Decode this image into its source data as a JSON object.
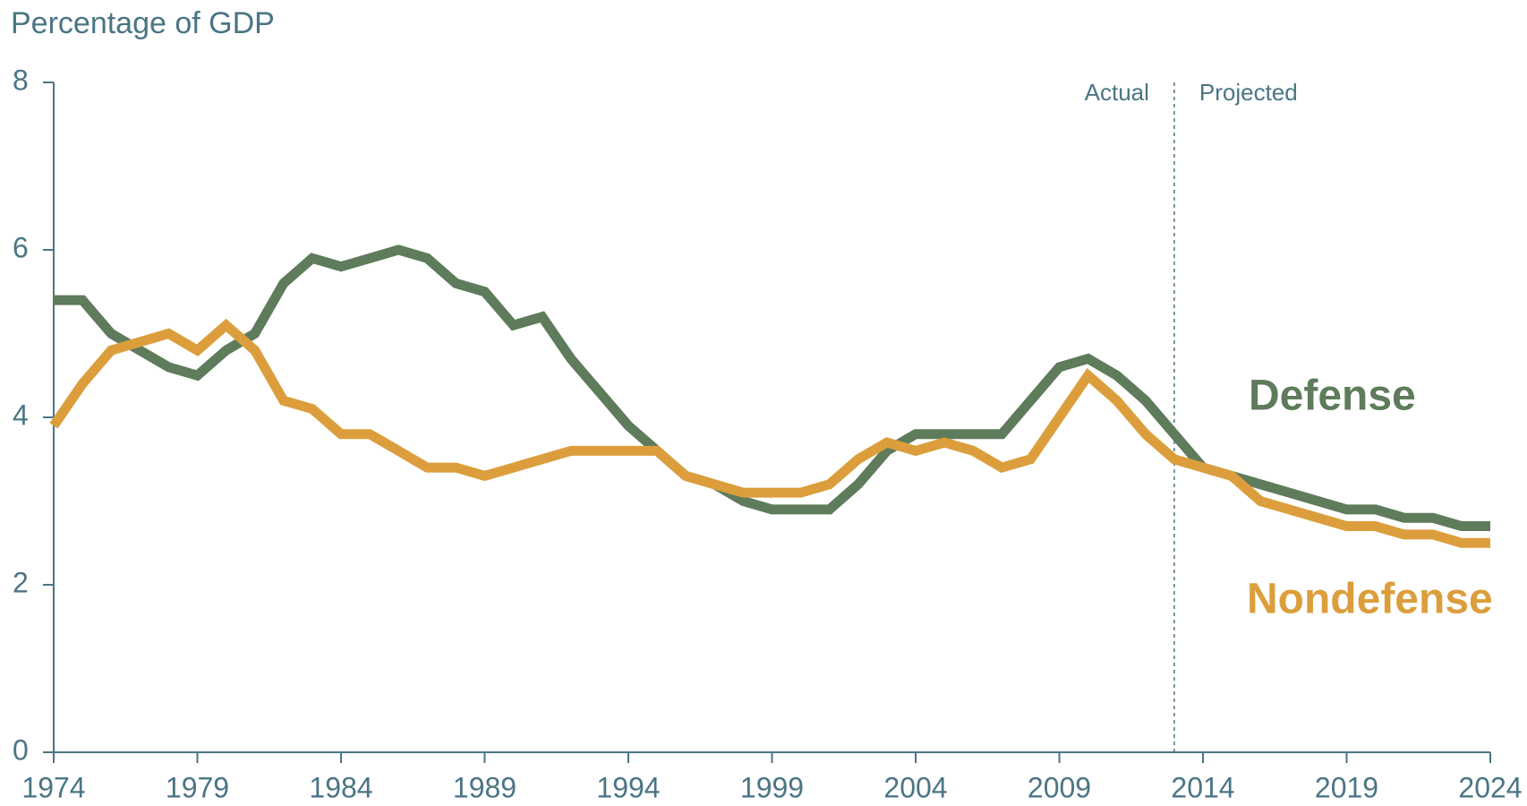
{
  "chart_data": {
    "type": "line",
    "y_axis_label": "Percentage of GDP",
    "x": [
      1974,
      1975,
      1976,
      1977,
      1978,
      1979,
      1980,
      1981,
      1982,
      1983,
      1984,
      1985,
      1986,
      1987,
      1988,
      1989,
      1990,
      1991,
      1992,
      1993,
      1994,
      1995,
      1996,
      1997,
      1998,
      1999,
      2000,
      2001,
      2002,
      2003,
      2004,
      2005,
      2006,
      2007,
      2008,
      2009,
      2010,
      2011,
      2012,
      2013,
      2014,
      2015,
      2016,
      2017,
      2018,
      2019,
      2020,
      2021,
      2022,
      2023,
      2024
    ],
    "series": [
      {
        "name": "Defense",
        "color": "#5e7b5b",
        "values": [
          5.4,
          5.4,
          5.0,
          4.8,
          4.6,
          4.5,
          4.8,
          5.0,
          5.6,
          5.9,
          5.8,
          5.9,
          6.0,
          5.9,
          5.6,
          5.5,
          5.1,
          5.2,
          4.7,
          4.3,
          3.9,
          3.6,
          3.3,
          3.2,
          3.0,
          2.9,
          2.9,
          2.9,
          3.2,
          3.6,
          3.8,
          3.8,
          3.8,
          3.8,
          4.2,
          4.6,
          4.7,
          4.5,
          4.2,
          3.8,
          3.4,
          3.3,
          3.2,
          3.1,
          3.0,
          2.9,
          2.9,
          2.8,
          2.8,
          2.7,
          2.7
        ]
      },
      {
        "name": "Nondefense",
        "color": "#dc9e3c",
        "values": [
          3.9,
          4.4,
          4.8,
          4.9,
          5.0,
          4.8,
          5.1,
          4.8,
          4.2,
          4.1,
          3.8,
          3.8,
          3.6,
          3.4,
          3.4,
          3.3,
          3.4,
          3.5,
          3.6,
          3.6,
          3.6,
          3.6,
          3.3,
          3.2,
          3.1,
          3.1,
          3.1,
          3.2,
          3.5,
          3.7,
          3.6,
          3.7,
          3.6,
          3.4,
          3.5,
          4.0,
          4.5,
          4.2,
          3.8,
          3.5,
          3.4,
          3.3,
          3.0,
          2.9,
          2.8,
          2.7,
          2.7,
          2.6,
          2.6,
          2.5,
          2.5
        ]
      }
    ],
    "xlim": [
      1974,
      2024
    ],
    "xticks": [
      1974,
      1979,
      1984,
      1989,
      1994,
      1999,
      2004,
      2009,
      2014,
      2019,
      2024
    ],
    "ylim": [
      0,
      8
    ],
    "yticks": [
      0,
      2,
      4,
      6,
      8
    ],
    "annotations": {
      "divider_x": 2013,
      "left": "Actual",
      "right": "Projected"
    }
  }
}
